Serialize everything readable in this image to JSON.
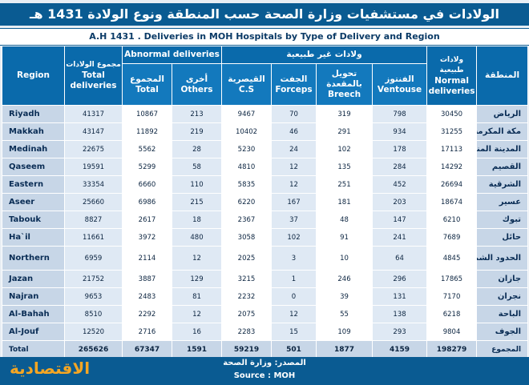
{
  "title_ar": "الولادات في مستشفيات وزارة الصحة حسب المنطقة ونوع الولادة 1431 هـ",
  "title_en": "A.H 1431 . Deliveries in MOH Hospitals by Type of Delivery and Region",
  "headers": {
    "region": "Region",
    "total_deliveries_ar": "مجموع الولادات",
    "total_deliveries_en": "Total deliveries",
    "abnormal_en": "Abnormal deliveries",
    "abnormal_total_ar": "المجموع",
    "abnormal_total_en": "Total",
    "others_ar": "أخرى",
    "others_en": "Others",
    "abnormal_ar": "ولادات غير طبيعية",
    "cs_ar": "القيصرية",
    "cs_en": "C.S",
    "forceps_ar": "الجفت",
    "forceps_en": "Forceps",
    "breech_ar": "تحويل بالمقعدة",
    "breech_en": "Breech",
    "ventouse_ar": "الفنتوز",
    "ventouse_en": "Ventouse",
    "normal_ar": "ولادات طبيعية",
    "normal_en": "Normal deliveries",
    "region_ar": "المنطقة"
  },
  "rows": [
    {
      "region": "Riyadh",
      "total": "41317",
      "abn_total": "10867",
      "others": "213",
      "cs": "9467",
      "forceps": "70",
      "breech": "319",
      "ventouse": "798",
      "normal": "30450",
      "region_ar": "الرياض"
    },
    {
      "region": "Makkah",
      "total": "43147",
      "abn_total": "11892",
      "others": "219",
      "cs": "10402",
      "forceps": "46",
      "breech": "291",
      "ventouse": "934",
      "normal": "31255",
      "region_ar": "مكة المكرمة"
    },
    {
      "region": "Medinah",
      "total": "22675",
      "abn_total": "5562",
      "others": "28",
      "cs": "5230",
      "forceps": "24",
      "breech": "102",
      "ventouse": "178",
      "normal": "17113",
      "region_ar": "المدينة المنورة"
    },
    {
      "region": "Qaseem",
      "total": "19591",
      "abn_total": "5299",
      "others": "58",
      "cs": "4810",
      "forceps": "12",
      "breech": "135",
      "ventouse": "284",
      "normal": "14292",
      "region_ar": "القصيم"
    },
    {
      "region": "Eastern",
      "total": "33354",
      "abn_total": "6660",
      "others": "110",
      "cs": "5835",
      "forceps": "12",
      "breech": "251",
      "ventouse": "452",
      "normal": "26694",
      "region_ar": "الشرقية"
    },
    {
      "region": "Aseer",
      "total": "25660",
      "abn_total": "6986",
      "others": "215",
      "cs": "6220",
      "forceps": "167",
      "breech": "181",
      "ventouse": "203",
      "normal": "18674",
      "region_ar": "عسير"
    },
    {
      "region": "Tabouk",
      "total": "8827",
      "abn_total": "2617",
      "others": "18",
      "cs": "2367",
      "forceps": "37",
      "breech": "48",
      "ventouse": "147",
      "normal": "6210",
      "region_ar": "تبوك"
    },
    {
      "region": "Ha`il",
      "total": "11661",
      "abn_total": "3972",
      "others": "480",
      "cs": "3058",
      "forceps": "102",
      "breech": "91",
      "ventouse": "241",
      "normal": "7689",
      "region_ar": "حائل"
    },
    {
      "region": "Northern",
      "total": "6959",
      "abn_total": "2114",
      "others": "12",
      "cs": "2025",
      "forceps": "3",
      "breech": "10",
      "ventouse": "64",
      "normal": "4845",
      "region_ar": "الحدود الشمالية"
    },
    {
      "region": "Jazan",
      "total": "21752",
      "abn_total": "3887",
      "others": "129",
      "cs": "3215",
      "forceps": "1",
      "breech": "246",
      "ventouse": "296",
      "normal": "17865",
      "region_ar": "جازان"
    },
    {
      "region": "Najran",
      "total": "9653",
      "abn_total": "2483",
      "others": "81",
      "cs": "2232",
      "forceps": "0",
      "breech": "39",
      "ventouse": "131",
      "normal": "7170",
      "region_ar": "نجران"
    },
    {
      "region": "Al-Bahah",
      "total": "8510",
      "abn_total": "2292",
      "others": "12",
      "cs": "2075",
      "forceps": "12",
      "breech": "55",
      "ventouse": "138",
      "normal": "6218",
      "region_ar": "الباحة"
    },
    {
      "region": "Al-Jouf",
      "total": "12520",
      "abn_total": "2716",
      "others": "16",
      "cs": "2283",
      "forceps": "15",
      "breech": "109",
      "ventouse": "293",
      "normal": "9804",
      "region_ar": "الجوف"
    }
  ],
  "total_row": {
    "region": "Total",
    "total": "265626",
    "abn_total": "67347",
    "others": "1591",
    "cs": "59219",
    "forceps": "501",
    "breech": "1877",
    "ventouse": "4159",
    "normal": "198279",
    "region_ar": "المجموع"
  },
  "source_ar": "المصدر: وزارة الصحة",
  "source_en": "Source : MOH",
  "logo_text": "الاقتصادية",
  "colors": {
    "header_blue": "#0a6aab",
    "title_blue": "#0a5b92",
    "row_label_bg": "#c7d6e7",
    "logo_orange": "#f5a623"
  }
}
